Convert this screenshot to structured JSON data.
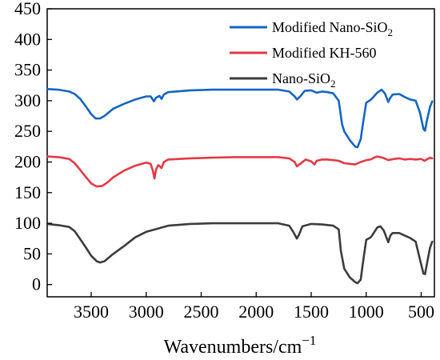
{
  "chart_data": {
    "type": "line",
    "title": "",
    "xlabel": "Wavenumbers/cm",
    "xlabel_superscript": "−1",
    "ylabel": "",
    "xlim": [
      3900,
      380
    ],
    "ylim": [
      -20,
      450
    ],
    "x_reversed": true,
    "x_ticks": [
      3500,
      3000,
      2500,
      2000,
      1500,
      1000,
      500
    ],
    "x_tick_labels": [
      "3500",
      "3000",
      "2500",
      "2000",
      "1500",
      "1000",
      "500"
    ],
    "y_ticks": [
      0,
      50,
      100,
      150,
      200,
      250,
      300,
      350,
      400,
      450
    ],
    "y_tick_labels": [
      "0",
      "50",
      "100",
      "150",
      "200",
      "250",
      "300",
      "350",
      "400",
      "450"
    ],
    "grid": false,
    "legend_position": "top-right",
    "series": [
      {
        "name": "Modified Nano-SiO",
        "name_subscript": "2",
        "color": "#1565c0",
        "points": [
          [
            3900,
            319
          ],
          [
            3800,
            318
          ],
          [
            3700,
            315
          ],
          [
            3650,
            311
          ],
          [
            3600,
            303
          ],
          [
            3550,
            291
          ],
          [
            3500,
            278
          ],
          [
            3460,
            271
          ],
          [
            3420,
            271
          ],
          [
            3380,
            275
          ],
          [
            3300,
            287
          ],
          [
            3200,
            295
          ],
          [
            3100,
            302
          ],
          [
            3000,
            307
          ],
          [
            2960,
            307
          ],
          [
            2930,
            299
          ],
          [
            2910,
            305
          ],
          [
            2880,
            308
          ],
          [
            2860,
            303
          ],
          [
            2840,
            310
          ],
          [
            2800,
            314
          ],
          [
            2600,
            317
          ],
          [
            2400,
            318
          ],
          [
            2200,
            318
          ],
          [
            2000,
            318
          ],
          [
            1800,
            318
          ],
          [
            1700,
            315
          ],
          [
            1650,
            307
          ],
          [
            1630,
            302
          ],
          [
            1600,
            307
          ],
          [
            1560,
            316
          ],
          [
            1500,
            317
          ],
          [
            1450,
            313
          ],
          [
            1400,
            315
          ],
          [
            1350,
            314
          ],
          [
            1300,
            312
          ],
          [
            1250,
            300
          ],
          [
            1220,
            262
          ],
          [
            1200,
            250
          ],
          [
            1150,
            236
          ],
          [
            1100,
            225
          ],
          [
            1080,
            224
          ],
          [
            1050,
            237
          ],
          [
            1030,
            262
          ],
          [
            1000,
            297
          ],
          [
            970,
            300
          ],
          [
            950,
            303
          ],
          [
            900,
            313
          ],
          [
            860,
            318
          ],
          [
            830,
            312
          ],
          [
            800,
            298
          ],
          [
            780,
            305
          ],
          [
            760,
            310
          ],
          [
            700,
            311
          ],
          [
            650,
            306
          ],
          [
            600,
            302
          ],
          [
            550,
            300
          ],
          [
            510,
            280
          ],
          [
            480,
            254
          ],
          [
            465,
            251
          ],
          [
            450,
            266
          ],
          [
            420,
            290
          ],
          [
            400,
            299
          ]
        ]
      },
      {
        "name": "Modified KH-560",
        "color": "#e53945",
        "points": [
          [
            3900,
            209
          ],
          [
            3800,
            208
          ],
          [
            3700,
            205
          ],
          [
            3650,
            198
          ],
          [
            3600,
            187
          ],
          [
            3550,
            176
          ],
          [
            3500,
            165
          ],
          [
            3450,
            160
          ],
          [
            3400,
            161
          ],
          [
            3350,
            167
          ],
          [
            3300,
            175
          ],
          [
            3200,
            186
          ],
          [
            3100,
            194
          ],
          [
            3000,
            199
          ],
          [
            2960,
            197
          ],
          [
            2940,
            186
          ],
          [
            2925,
            173
          ],
          [
            2910,
            188
          ],
          [
            2890,
            195
          ],
          [
            2860,
            190
          ],
          [
            2840,
            200
          ],
          [
            2800,
            204
          ],
          [
            2600,
            206
          ],
          [
            2400,
            207
          ],
          [
            2200,
            208
          ],
          [
            2000,
            208
          ],
          [
            1800,
            208
          ],
          [
            1700,
            206
          ],
          [
            1650,
            200
          ],
          [
            1630,
            193
          ],
          [
            1600,
            197
          ],
          [
            1550,
            204
          ],
          [
            1500,
            201
          ],
          [
            1470,
            196
          ],
          [
            1450,
            202
          ],
          [
            1400,
            204
          ],
          [
            1350,
            204
          ],
          [
            1300,
            203
          ],
          [
            1250,
            202
          ],
          [
            1200,
            198
          ],
          [
            1150,
            197
          ],
          [
            1100,
            196
          ],
          [
            1050,
            200
          ],
          [
            1000,
            203
          ],
          [
            960,
            204
          ],
          [
            930,
            207
          ],
          [
            900,
            209
          ],
          [
            850,
            207
          ],
          [
            800,
            203
          ],
          [
            750,
            205
          ],
          [
            700,
            206
          ],
          [
            650,
            204
          ],
          [
            600,
            205
          ],
          [
            550,
            204
          ],
          [
            500,
            205
          ],
          [
            470,
            202
          ],
          [
            450,
            204
          ],
          [
            420,
            207
          ],
          [
            400,
            206
          ]
        ]
      },
      {
        "name": "Nano-SiO",
        "name_subscript": "2",
        "color": "#3c3c3c",
        "points": [
          [
            3900,
            99
          ],
          [
            3800,
            97
          ],
          [
            3700,
            94
          ],
          [
            3650,
            87
          ],
          [
            3600,
            74
          ],
          [
            3550,
            61
          ],
          [
            3500,
            47
          ],
          [
            3450,
            38
          ],
          [
            3420,
            36
          ],
          [
            3380,
            38
          ],
          [
            3300,
            50
          ],
          [
            3200,
            63
          ],
          [
            3100,
            77
          ],
          [
            3000,
            86
          ],
          [
            2900,
            91
          ],
          [
            2800,
            96
          ],
          [
            2600,
            99
          ],
          [
            2400,
            100
          ],
          [
            2200,
            100
          ],
          [
            2000,
            100
          ],
          [
            1800,
            100
          ],
          [
            1700,
            96
          ],
          [
            1660,
            85
          ],
          [
            1630,
            75
          ],
          [
            1610,
            82
          ],
          [
            1580,
            95
          ],
          [
            1500,
            99
          ],
          [
            1400,
            98
          ],
          [
            1300,
            96
          ],
          [
            1250,
            90
          ],
          [
            1230,
            55
          ],
          [
            1200,
            26
          ],
          [
            1150,
            12
          ],
          [
            1100,
            4
          ],
          [
            1080,
            2
          ],
          [
            1050,
            8
          ],
          [
            1030,
            35
          ],
          [
            1000,
            73
          ],
          [
            960,
            77
          ],
          [
            950,
            79
          ],
          [
            900,
            93
          ],
          [
            870,
            95
          ],
          [
            840,
            88
          ],
          [
            800,
            69
          ],
          [
            780,
            80
          ],
          [
            760,
            84
          ],
          [
            700,
            84
          ],
          [
            650,
            80
          ],
          [
            600,
            76
          ],
          [
            550,
            70
          ],
          [
            510,
            40
          ],
          [
            480,
            18
          ],
          [
            465,
            17
          ],
          [
            450,
            32
          ],
          [
            420,
            60
          ],
          [
            400,
            70
          ]
        ]
      }
    ]
  }
}
